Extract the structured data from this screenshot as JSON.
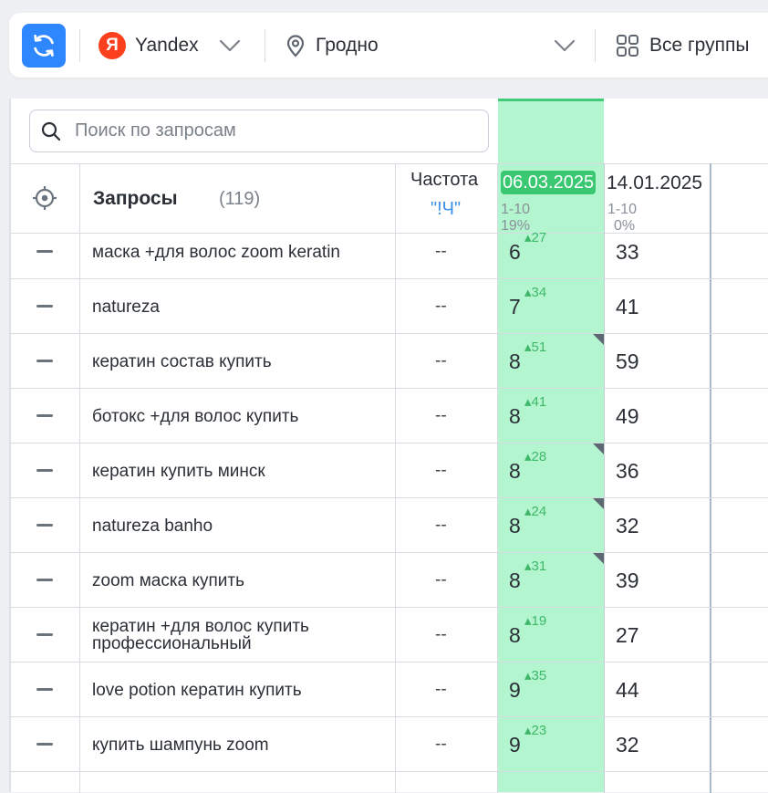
{
  "toolbar": {
    "engine": "Yandex",
    "engine_logo_letter": "Я",
    "region": "Гродно",
    "groups": "Все группы"
  },
  "search": {
    "placeholder": "Поиск по запросам"
  },
  "table": {
    "header": {
      "queries_label": "Запросы",
      "queries_count": "(119)",
      "freq_label": "Частота",
      "freq_mode": "\"!Ч\"",
      "date1": "06.03.2025",
      "date1_range": "1-10",
      "date1_pct": "19%",
      "date2": "14.01.2025",
      "date2_range": "1-10",
      "date2_pct": "0%"
    },
    "rows": [
      {
        "query": "маска +для волос zoom keratin",
        "freq": "--",
        "pos": "6",
        "delta": "▴27",
        "prev": "33",
        "flag": false
      },
      {
        "query": "natureza",
        "freq": "--",
        "pos": "7",
        "delta": "▴34",
        "prev": "41",
        "flag": false
      },
      {
        "query": "кератин состав купить",
        "freq": "--",
        "pos": "8",
        "delta": "▴51",
        "prev": "59",
        "flag": true
      },
      {
        "query": "ботокс +для волос купить",
        "freq": "--",
        "pos": "8",
        "delta": "▴41",
        "prev": "49",
        "flag": false
      },
      {
        "query": "кератин купить минск",
        "freq": "--",
        "pos": "8",
        "delta": "▴28",
        "prev": "36",
        "flag": true
      },
      {
        "query": "natureza banho",
        "freq": "--",
        "pos": "8",
        "delta": "▴24",
        "prev": "32",
        "flag": true
      },
      {
        "query": "zoom маска купить",
        "freq": "--",
        "pos": "8",
        "delta": "▴31",
        "prev": "39",
        "flag": true
      },
      {
        "query": "кератин +для волос купить профессиональный",
        "freq": "--",
        "pos": "8",
        "delta": "▴19",
        "prev": "27",
        "flag": false
      },
      {
        "query": "love potion кератин купить",
        "freq": "--",
        "pos": "9",
        "delta": "▴35",
        "prev": "44",
        "flag": false
      },
      {
        "query": "купить шампунь zoom",
        "freq": "--",
        "pos": "9",
        "delta": "▴23",
        "prev": "32",
        "flag": false
      }
    ]
  }
}
